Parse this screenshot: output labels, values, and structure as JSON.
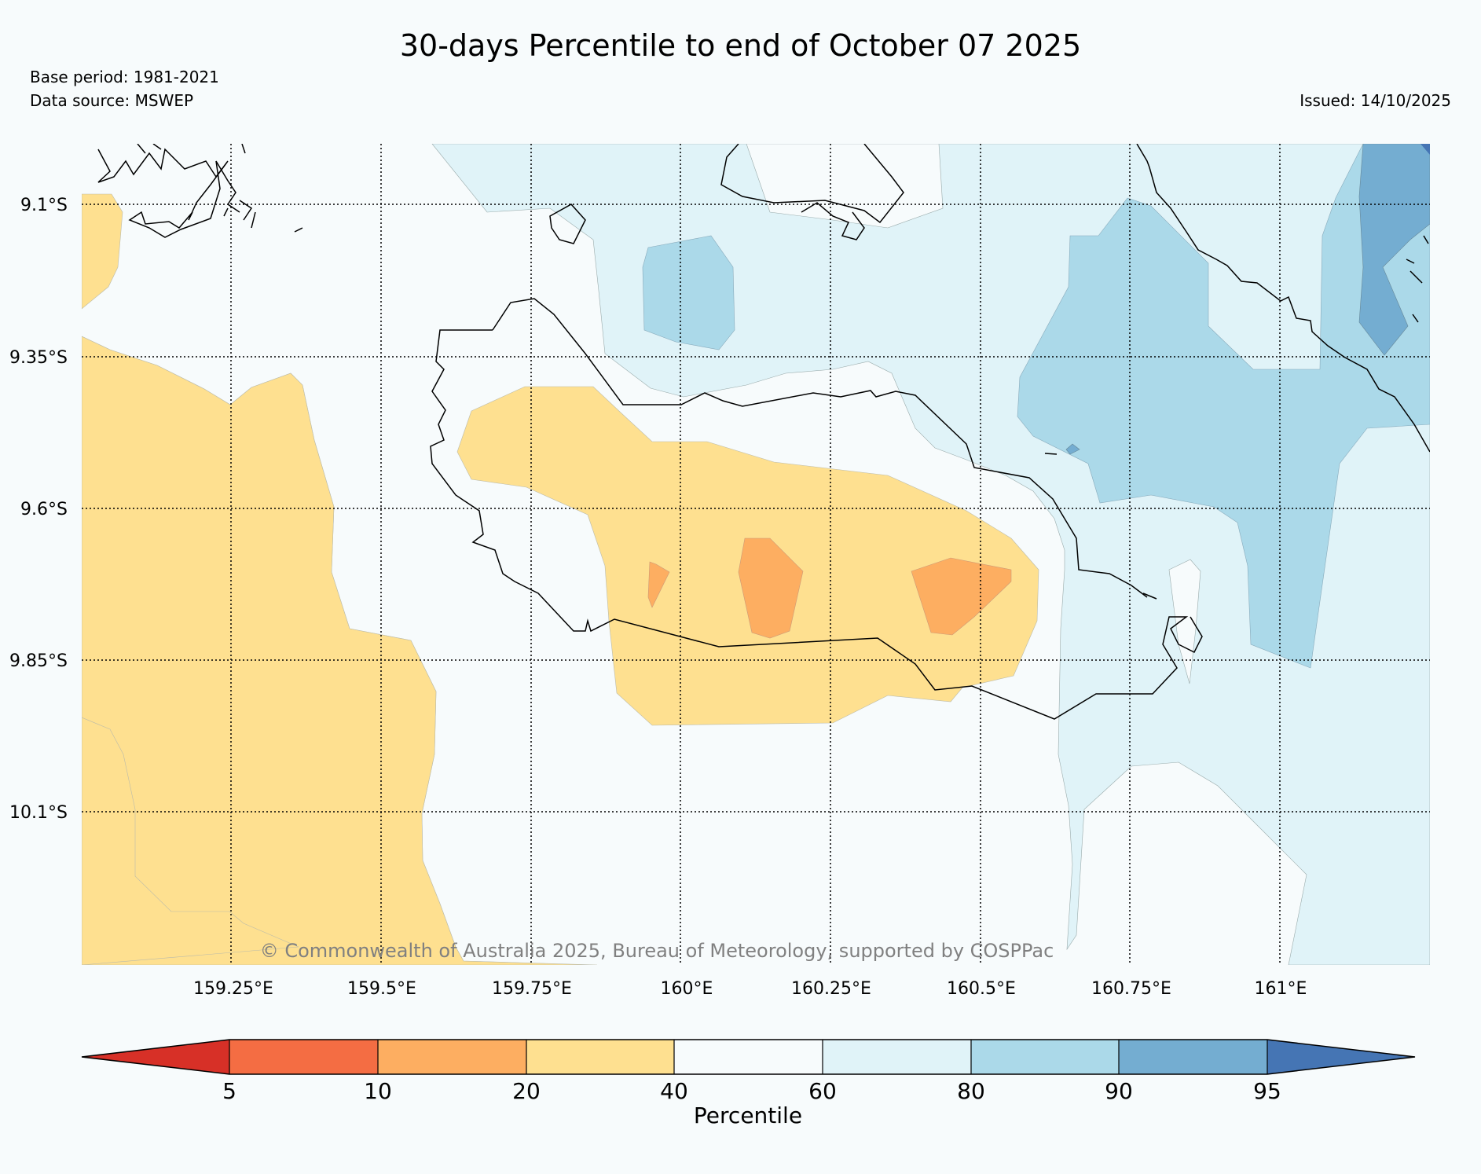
{
  "title": "30-days Percentile to end of October 07 2025",
  "base_period": "Base period: 1981-2021",
  "data_source": "Data source: MSWEP",
  "issued": "Issued: 14/10/2025",
  "copyright": "© Commonwealth of Australia 2025, Bureau of Meteorology, supported by COSPPac",
  "map": {
    "lon_labels": [
      "159.25°E",
      "159.5°E",
      "159.75°E",
      "160°E",
      "160.25°E",
      "160.5°E",
      "160.75°E",
      "161°E"
    ],
    "lat_labels": [
      "9.1°S",
      "9.35°S",
      "9.6°S",
      "9.85°S",
      "10.1°S"
    ]
  },
  "colorbar": {
    "label": "Percentile",
    "ticks": [
      "5",
      "10",
      "20",
      "40",
      "60",
      "80",
      "90",
      "95"
    ],
    "colors": [
      "#d73027",
      "#f46d43",
      "#fdae61",
      "#fee090",
      "#f7fbfc",
      "#e0f3f8",
      "#abd9e9",
      "#74add1",
      "#4575b4"
    ]
  }
}
